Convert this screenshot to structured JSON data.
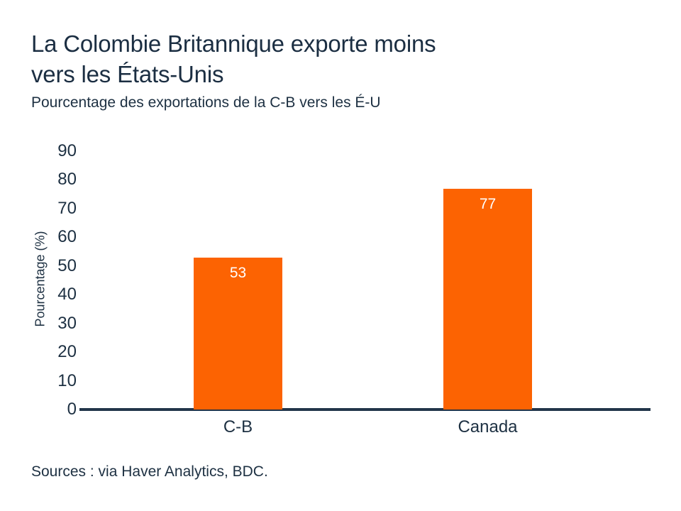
{
  "title_lines": [
    "La Colombie Britannique exporte moins",
    "vers les États-Unis"
  ],
  "subtitle": "Pourcentage des exportations de la C-B vers les É-U",
  "source": "Sources : via Haver Analytics, BDC.",
  "colors": {
    "text": "#1D3042",
    "axis_line": "#22354A",
    "bar": "#FC6302",
    "bar_label": "#FFFFFF"
  },
  "chart_data": {
    "type": "bar",
    "categories": [
      "C-B",
      "Canada"
    ],
    "values": [
      53,
      77
    ],
    "bar_labels": [
      "53",
      "77"
    ],
    "title": "La Colombie Britannique exporte moins vers les États-Unis",
    "subtitle": "Pourcentage des exportations de la C-B vers les É-U",
    "xlabel": "",
    "ylabel": "Pourcentage (%)",
    "ylim": [
      0,
      90
    ],
    "yticks": [
      0,
      10,
      20,
      30,
      40,
      50,
      60,
      70,
      80,
      90
    ],
    "grid": false,
    "legend": false,
    "bar_color": "#FC6302",
    "value_label_position": "inside-top",
    "source": "Sources : via Haver Analytics, BDC."
  }
}
